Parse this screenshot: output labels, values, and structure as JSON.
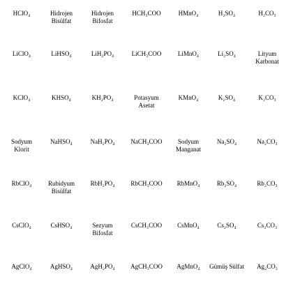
{
  "rows": [
    [
      "HClO₄",
      "Hidrojen\nBisülfat",
      "Hidrojen\nBifosfat",
      "HCH₃COO",
      "HMnO₄",
      "H₂SO₄",
      "H₂CO₃"
    ],
    [
      "LiClO₄",
      "LiHSO₄",
      "LiH₂PO₄",
      "LiCH₃COO",
      "LiMnO₄",
      "Li₂SO₄",
      "Lityum\nKarbonat"
    ],
    [
      "KClO₄",
      "KHSO₄",
      "KH₂PO₄",
      "Potasyum\nAsetat",
      "KMnO₄",
      "K₂SO₄",
      "K₂CO₃"
    ],
    [
      "Sodyum\nKlorit",
      "NaHSO₄",
      "NaH₂PO₄",
      "NaCH₃COO",
      "Sodyum\nManganat",
      "Na₂SO₄",
      "Na₂CO₃"
    ],
    [
      "RbClO₄",
      "Rubidyum\nBisülfat",
      "RbH₂PO₄",
      "RbCH₃COO",
      "RbMnO₄",
      "Rb₂SO₄",
      "Rb₂CO₃"
    ],
    [
      "CsClO₄",
      "CsHSO₄",
      "Sezyum\nBifosfat",
      "CsCH₃COO",
      "CsMnO₄",
      "Cs₂SO₄",
      "Cs₂CO₃"
    ],
    [
      "AgClO₄",
      "AgHSO₄",
      "AgH₂PO₄",
      "AgCH₃COO",
      "AgMnO₄",
      "Gümüş Sülfat",
      "Ag₂CO₃"
    ]
  ]
}
